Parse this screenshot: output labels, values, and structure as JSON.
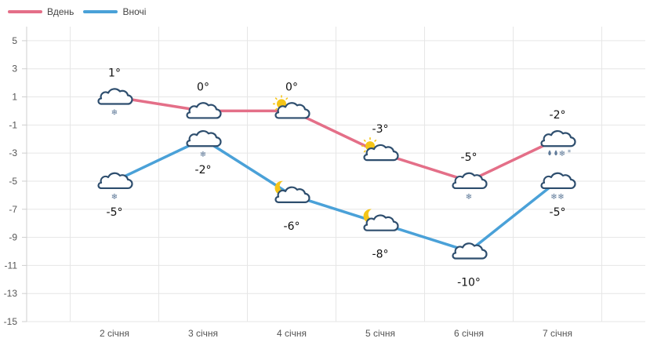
{
  "legend": {
    "day_label": "Вдень",
    "night_label": "Вночі"
  },
  "colors": {
    "day": "#e46f88",
    "night": "#4aa1d8",
    "grid": "#e6e6e6",
    "cloud": "#2e4e6e",
    "sun": "#f5c518",
    "precip": "#5f7a99"
  },
  "chart_data": {
    "type": "line",
    "categories": [
      "2 січня",
      "3 січня",
      "4 січня",
      "5 січня",
      "6 січня",
      "7 січня"
    ],
    "ylim": [
      -15,
      6
    ],
    "yticks": [
      5,
      3,
      1,
      -1,
      -3,
      -5,
      -7,
      -9,
      -11,
      -13,
      -15
    ],
    "grid": true,
    "legend_position": "top-left",
    "series": [
      {
        "name": "Вдень",
        "values": [
          1,
          0,
          0,
          -3,
          -5,
          -2
        ],
        "labels": [
          "1°",
          "0°",
          "0°",
          "-3°",
          "-5°",
          "-2°"
        ],
        "icons": [
          "cloud-snow-icon",
          "cloud-icon",
          "sun-cloud-icon",
          "sun-cloud-icon",
          "cloud-snow-icon",
          "cloud-rain-snow-icon"
        ]
      },
      {
        "name": "Вночі",
        "values": [
          -5,
          -2,
          -6,
          -8,
          -10,
          -5
        ],
        "labels": [
          "-5°",
          "-2°",
          "-6°",
          "-8°",
          "-10°",
          "-5°"
        ],
        "icons": [
          "cloud-snow-icon",
          "cloud-snow-icon",
          "moon-cloud-icon",
          "moon-cloud-icon",
          "cloud-icon",
          "cloud-heavy-snow-icon"
        ]
      }
    ]
  }
}
